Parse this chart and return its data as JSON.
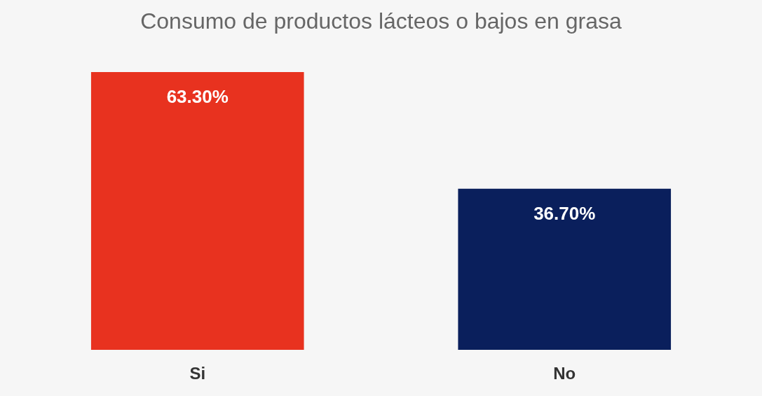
{
  "chart_data": {
    "type": "bar",
    "title": "Consumo de productos lácteos o bajos en grasa",
    "categories": [
      "Si",
      "No"
    ],
    "values": [
      63.3,
      36.7
    ],
    "colors": [
      "#e8321f",
      "#0a1f5c"
    ],
    "value_labels": [
      "63.30%",
      "36.70%"
    ]
  }
}
